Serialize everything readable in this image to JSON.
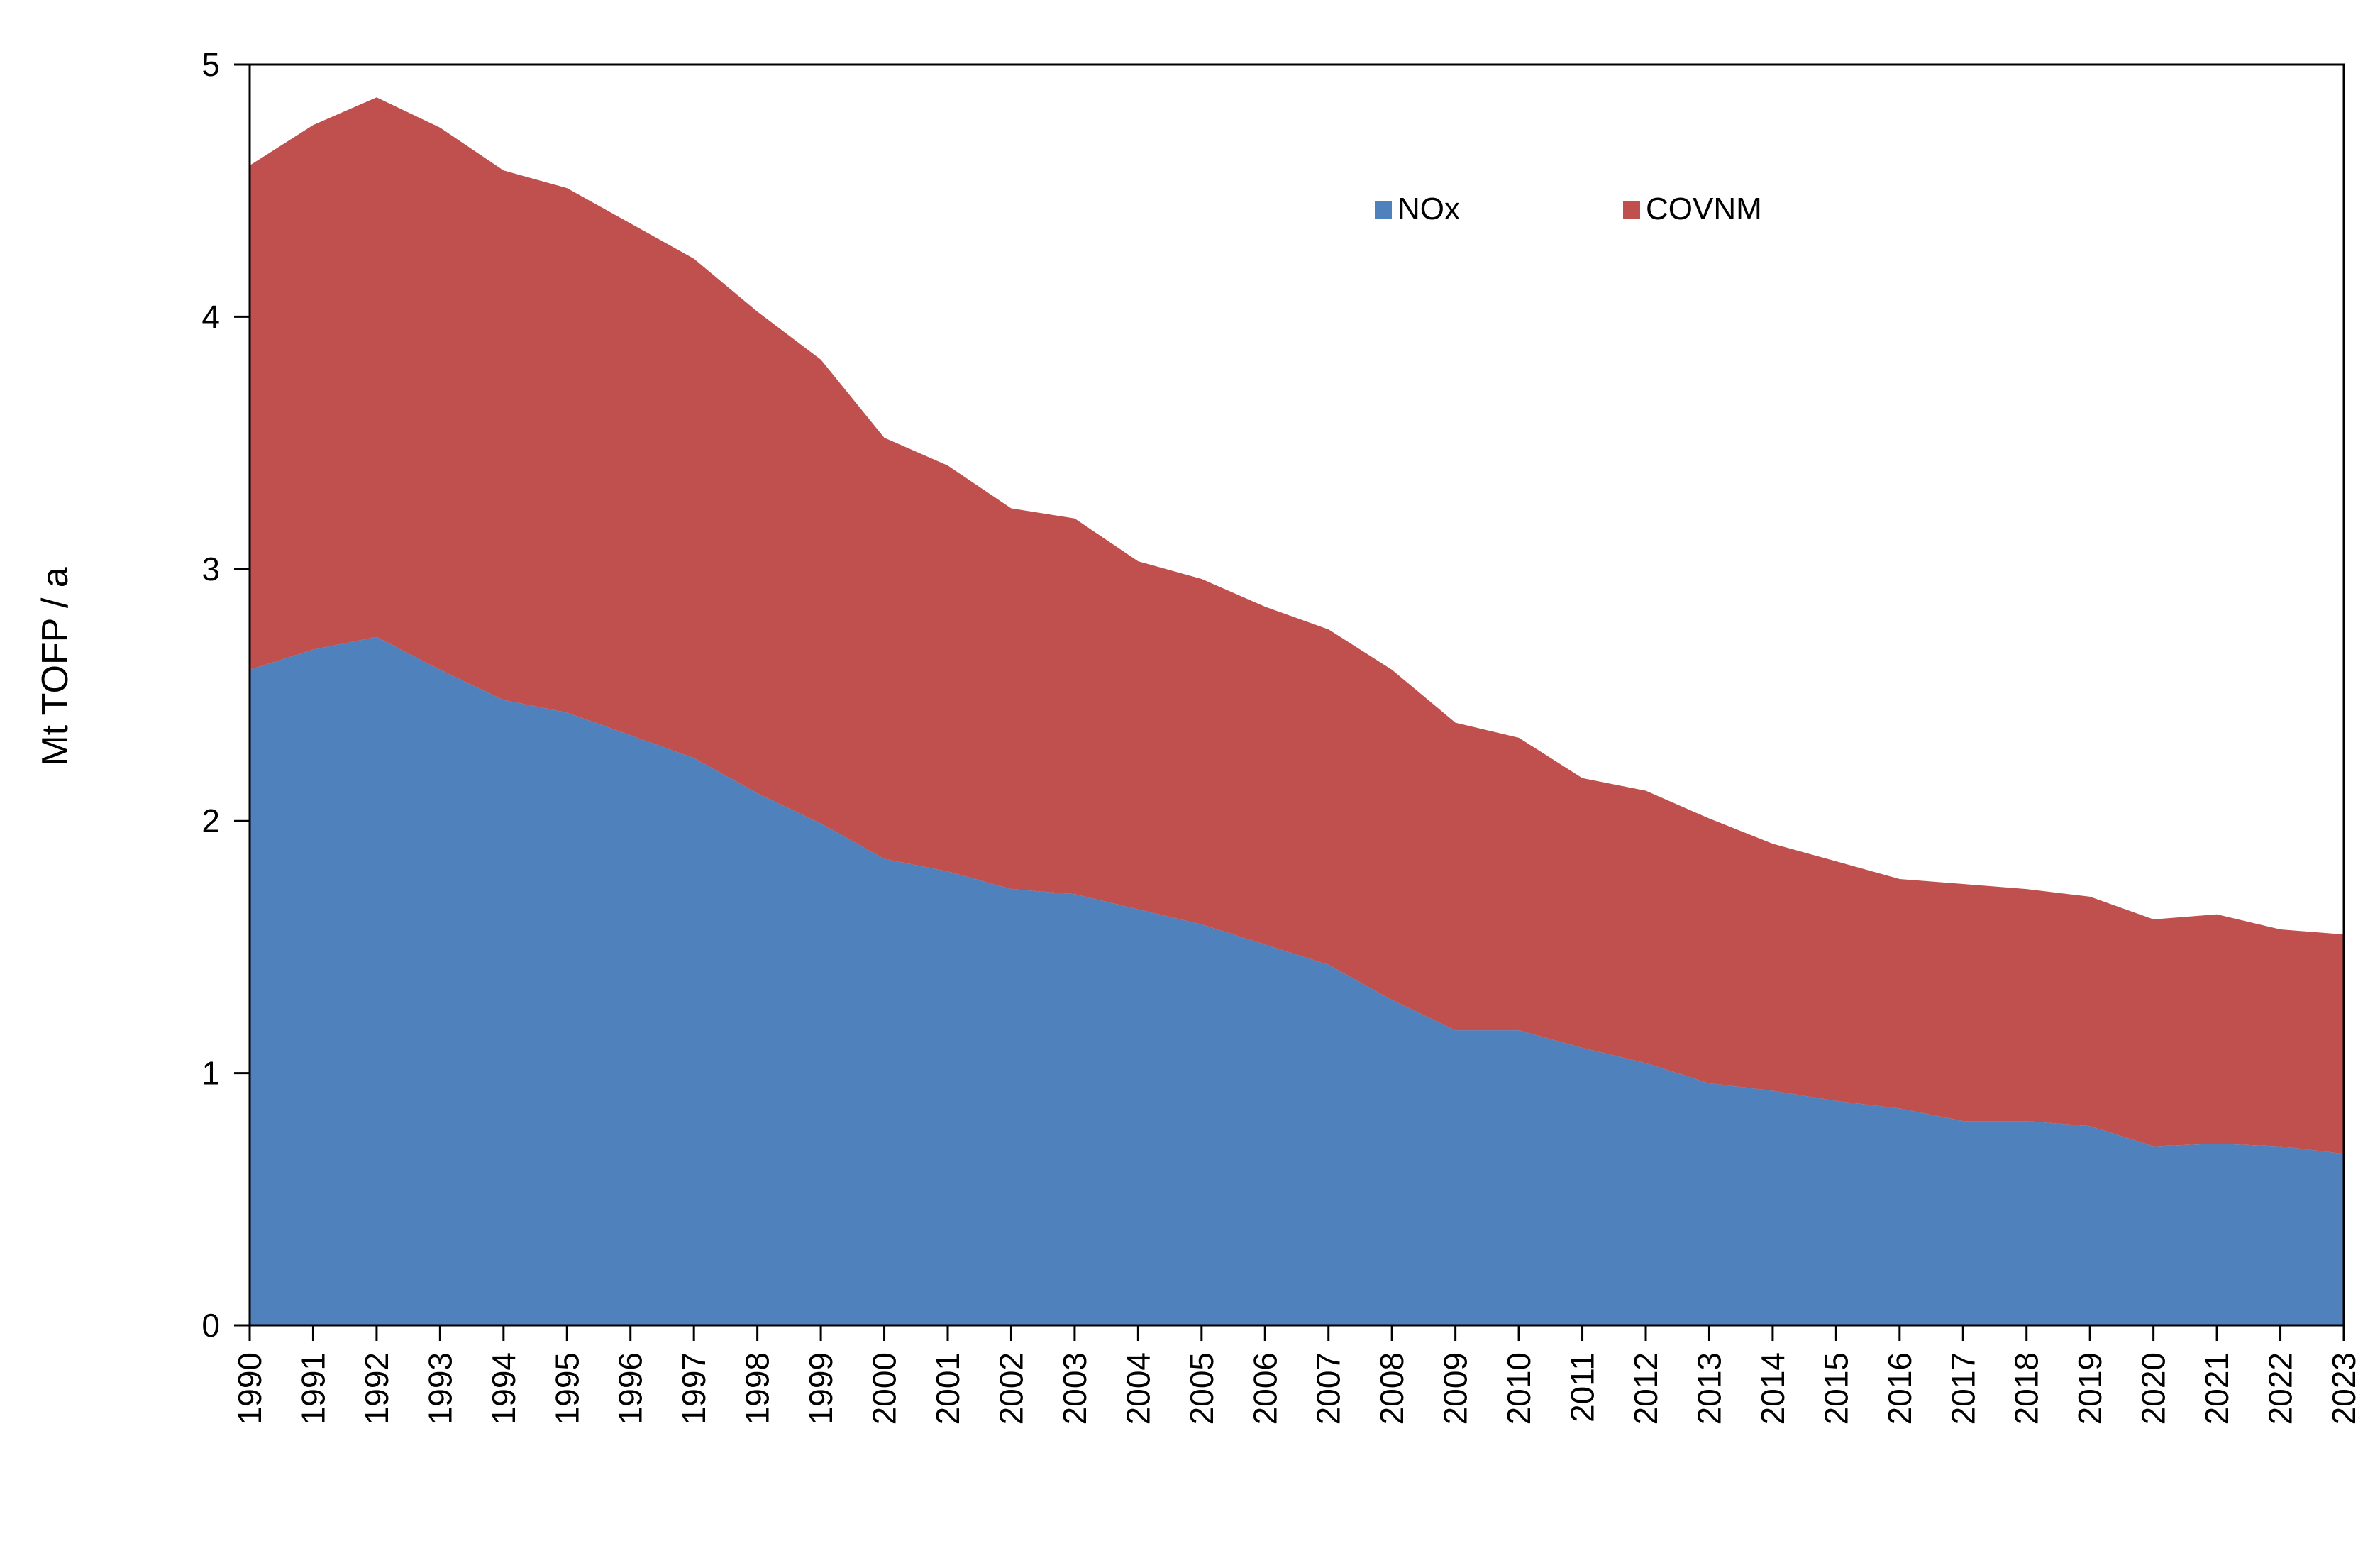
{
  "colors": {
    "nox": "#4F81BD",
    "covnm": "#C0504D",
    "axis": "#000000",
    "background": "#FFFFFF"
  },
  "chart_data": {
    "type": "area",
    "stacked": true,
    "title": "",
    "xlabel": "",
    "ylabel": "Mt TOFP / a",
    "ylim": [
      0,
      5
    ],
    "yticks": [
      "0",
      "1",
      "2",
      "3",
      "4",
      "5"
    ],
    "grid": false,
    "legend_position": "top-center",
    "categories": [
      "1990",
      "1991",
      "1992",
      "1993",
      "1994",
      "1995",
      "1996",
      "1997",
      "1998",
      "1999",
      "2000",
      "2001",
      "2002",
      "2003",
      "2004",
      "2005",
      "2006",
      "2007",
      "2008",
      "2009",
      "2010",
      "2011",
      "2012",
      "2013",
      "2014",
      "2015",
      "2016",
      "2017",
      "2018",
      "2019",
      "2020",
      "2021",
      "2022",
      "2023"
    ],
    "series": [
      {
        "name": "NOx",
        "color_key": "nox",
        "values": [
          2.6,
          2.68,
          2.73,
          2.6,
          2.48,
          2.43,
          2.34,
          2.25,
          2.11,
          1.99,
          1.85,
          1.8,
          1.73,
          1.71,
          1.65,
          1.59,
          1.51,
          1.43,
          1.29,
          1.17,
          1.17,
          1.1,
          1.04,
          0.96,
          0.93,
          0.89,
          0.86,
          0.81,
          0.81,
          0.79,
          0.71,
          0.72,
          0.71,
          0.68
        ]
      },
      {
        "name": "COVNM",
        "color_key": "covnm",
        "values": [
          2.0,
          2.08,
          2.14,
          2.15,
          2.1,
          2.08,
          2.03,
          1.98,
          1.91,
          1.84,
          1.67,
          1.61,
          1.51,
          1.49,
          1.38,
          1.37,
          1.34,
          1.33,
          1.31,
          1.22,
          1.16,
          1.07,
          1.08,
          1.05,
          0.98,
          0.95,
          0.91,
          0.94,
          0.92,
          0.91,
          0.9,
          0.91,
          0.86,
          0.87
        ]
      }
    ]
  }
}
